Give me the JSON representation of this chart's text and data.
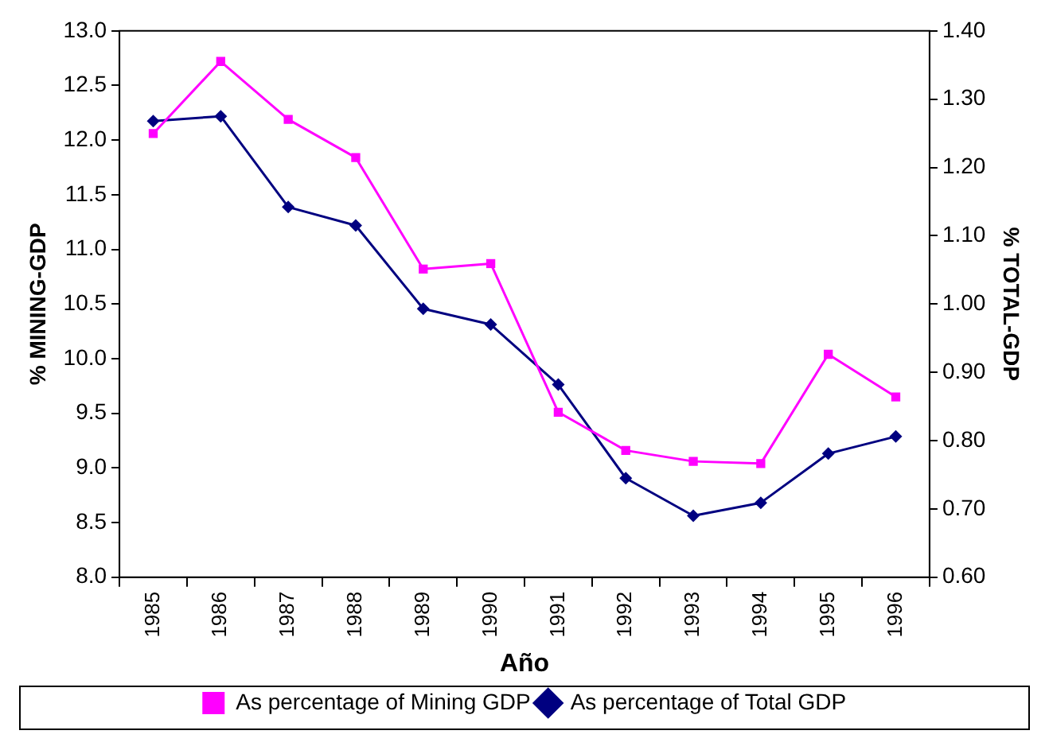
{
  "chart_data": {
    "type": "line",
    "xlabel": "Año",
    "ylabel": "% MINING-GDP",
    "y2label": "% TOTAL-GDP",
    "categories": [
      "1985",
      "1986",
      "1987",
      "1988",
      "1989",
      "1990",
      "1991",
      "1992",
      "1993",
      "1994",
      "1995",
      "1996"
    ],
    "series": [
      {
        "name": "As percentage of Mining GDP",
        "color": "#ff00ff",
        "marker": "square",
        "values": [
          12.06,
          12.72,
          12.19,
          11.84,
          10.82,
          10.87,
          9.51,
          9.16,
          9.06,
          9.04,
          10.04,
          9.65
        ]
      },
      {
        "name": "As percentage of Total GDP",
        "color": "#000080",
        "marker": "diamond",
        "axis": "y2",
        "values": [
          1.268,
          1.275,
          1.142,
          1.115,
          0.993,
          0.97,
          0.882,
          0.745,
          0.69,
          0.709,
          0.781,
          0.806
        ]
      }
    ],
    "ylim": [
      8,
      13
    ],
    "yticks": [
      {
        "value": 8,
        "label": "8.0"
      },
      {
        "value": 8.5,
        "label": "8.5"
      },
      {
        "value": 9,
        "label": "9.0"
      },
      {
        "value": 9.5,
        "label": "9.5"
      },
      {
        "value": 10,
        "label": "10.0"
      },
      {
        "value": 10.5,
        "label": "10.5"
      },
      {
        "value": 11,
        "label": "11.0"
      },
      {
        "value": 11.5,
        "label": "11.5"
      },
      {
        "value": 12,
        "label": "12.0"
      },
      {
        "value": 12.5,
        "label": "12.5"
      },
      {
        "value": 13,
        "label": "13.0"
      }
    ],
    "y2lim": [
      0.6,
      1.4
    ],
    "y2ticks": [
      {
        "value": 0.6,
        "label": "0.60"
      },
      {
        "value": 0.7,
        "label": "0.70"
      },
      {
        "value": 0.8,
        "label": "0.80"
      },
      {
        "value": 0.9,
        "label": "0.90"
      },
      {
        "value": 1.0,
        "label": "1.00"
      },
      {
        "value": 1.1,
        "label": "1.10"
      },
      {
        "value": 1.2,
        "label": "1.20"
      },
      {
        "value": 1.3,
        "label": "1.30"
      },
      {
        "value": 1.4,
        "label": "1.40"
      }
    ],
    "grid": false,
    "legend": "bottom",
    "line_style": "solid"
  }
}
